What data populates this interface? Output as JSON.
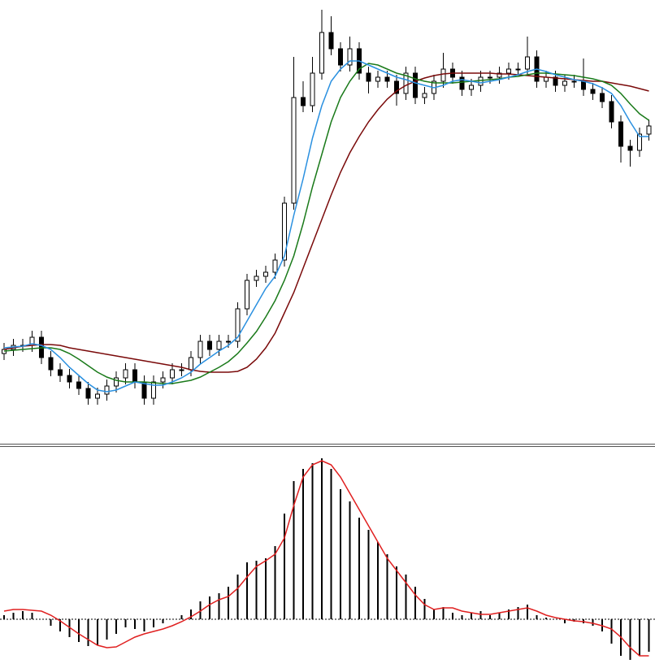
{
  "chart_data": [
    {
      "type": "candlestick",
      "open": [
        105,
        110,
        115,
        115,
        125,
        100,
        85,
        78,
        70,
        62,
        50,
        55,
        65,
        75,
        85,
        70,
        50,
        70,
        75,
        85,
        85,
        100,
        120,
        110,
        120,
        120,
        160,
        195,
        200,
        205,
        220,
        290,
        420,
        410,
        450,
        500,
        480,
        460,
        480,
        450,
        440,
        445,
        440,
        425,
        450,
        420,
        425,
        440,
        455,
        445,
        430,
        435,
        445,
        445,
        450,
        455,
        455,
        470,
        440,
        445,
        435,
        440,
        440,
        430,
        425,
        415,
        390,
        360,
        355,
        375
      ],
      "high": [
        118,
        123,
        123,
        133,
        133,
        108,
        93,
        86,
        78,
        70,
        63,
        73,
        83,
        93,
        93,
        78,
        78,
        83,
        93,
        93,
        108,
        128,
        128,
        128,
        128,
        168,
        203,
        208,
        213,
        228,
        298,
        470,
        440,
        470,
        528,
        520,
        488,
        495,
        488,
        458,
        453,
        453,
        448,
        458,
        458,
        433,
        448,
        475,
        463,
        453,
        443,
        453,
        453,
        458,
        463,
        463,
        495,
        478,
        453,
        453,
        448,
        448,
        468,
        438,
        433,
        423,
        398,
        368,
        383,
        393
      ],
      "low": [
        97,
        102,
        107,
        107,
        92,
        77,
        70,
        62,
        54,
        42,
        42,
        47,
        57,
        67,
        62,
        42,
        42,
        62,
        67,
        77,
        77,
        92,
        102,
        102,
        112,
        112,
        152,
        187,
        192,
        197,
        212,
        282,
        402,
        402,
        442,
        472,
        452,
        452,
        442,
        425,
        432,
        432,
        410,
        417,
        412,
        412,
        417,
        432,
        437,
        422,
        422,
        427,
        437,
        437,
        442,
        447,
        447,
        432,
        432,
        427,
        427,
        432,
        422,
        417,
        407,
        382,
        340,
        335,
        347,
        367
      ],
      "close": [
        110,
        115,
        115,
        125,
        100,
        85,
        78,
        70,
        62,
        50,
        55,
        65,
        75,
        85,
        70,
        50,
        70,
        75,
        85,
        85,
        100,
        120,
        110,
        120,
        120,
        160,
        195,
        200,
        205,
        220,
        290,
        420,
        410,
        450,
        500,
        480,
        460,
        480,
        450,
        440,
        445,
        440,
        425,
        450,
        420,
        425,
        440,
        455,
        445,
        430,
        435,
        445,
        445,
        450,
        455,
        455,
        470,
        440,
        445,
        435,
        440,
        440,
        430,
        425,
        415,
        390,
        360,
        355,
        375,
        385
      ],
      "ylim": [
        0,
        540
      ],
      "up_color": "#ffffff",
      "down_color": "#000000",
      "series": [
        {
          "color": "#7a0a0a",
          "values": [
            110,
            112,
            114,
            115,
            116,
            116,
            115,
            112,
            110,
            108,
            106,
            104,
            102,
            100,
            98,
            96,
            94,
            92,
            90,
            88,
            85,
            83,
            82,
            82,
            82,
            83,
            88,
            98,
            112,
            130,
            155,
            180,
            210,
            240,
            270,
            300,
            328,
            352,
            372,
            390,
            405,
            418,
            428,
            435,
            440,
            444,
            447,
            449,
            450,
            450,
            450,
            450,
            450,
            449,
            449,
            448,
            447,
            446,
            445,
            444,
            443,
            442,
            441,
            440,
            440,
            438,
            436,
            434,
            431,
            428
          ]
        },
        {
          "color": "#1a7a1a",
          "values": [
            108,
            109,
            110,
            111,
            112,
            112,
            110,
            105,
            98,
            90,
            82,
            76,
            72,
            70,
            70,
            70,
            69,
            68,
            68,
            70,
            72,
            76,
            82,
            88,
            95,
            105,
            118,
            132,
            150,
            170,
            195,
            225,
            265,
            310,
            350,
            390,
            420,
            440,
            455,
            462,
            460,
            455,
            450,
            447,
            443,
            440,
            438,
            438,
            438,
            439,
            440,
            441,
            442,
            443,
            445,
            446,
            448,
            450,
            450,
            449,
            448,
            447,
            445,
            443,
            440,
            435,
            425,
            412,
            400,
            392
          ]
        },
        {
          "color": "#2a90e0",
          "values": [
            112,
            113,
            114,
            117,
            115,
            110,
            100,
            88,
            78,
            68,
            60,
            58,
            60,
            65,
            70,
            68,
            66,
            66,
            70,
            75,
            82,
            92,
            100,
            108,
            115,
            125,
            145,
            165,
            185,
            200,
            225,
            275,
            320,
            370,
            410,
            440,
            455,
            465,
            465,
            460,
            455,
            450,
            445,
            442,
            438,
            435,
            432,
            435,
            440,
            442,
            440,
            438,
            440,
            442,
            445,
            448,
            452,
            455,
            452,
            448,
            445,
            442,
            440,
            437,
            432,
            425,
            410,
            390,
            372,
            372
          ]
        }
      ]
    },
    {
      "type": "histogram",
      "values": [
        5,
        8,
        10,
        8,
        0,
        -8,
        -15,
        -22,
        -28,
        -33,
        -32,
        -25,
        -18,
        -10,
        -12,
        -15,
        -10,
        -5,
        0,
        5,
        12,
        22,
        28,
        32,
        40,
        55,
        70,
        72,
        75,
        90,
        130,
        170,
        185,
        192,
        198,
        185,
        160,
        145,
        125,
        110,
        95,
        80,
        65,
        55,
        40,
        25,
        12,
        15,
        8,
        5,
        8,
        10,
        5,
        8,
        12,
        15,
        18,
        5,
        2,
        0,
        -5,
        -3,
        -5,
        -8,
        -15,
        -30,
        -45,
        -50,
        -45,
        -40
      ],
      "color": "#000000",
      "ylim": [
        -60,
        212
      ],
      "series": [
        {
          "color": "#e02020",
          "values": [
            10,
            12,
            12,
            11,
            10,
            5,
            -2,
            -10,
            -18,
            -25,
            -32,
            -35,
            -34,
            -28,
            -22,
            -18,
            -15,
            -12,
            -8,
            -3,
            3,
            10,
            18,
            24,
            28,
            38,
            52,
            65,
            72,
            80,
            100,
            140,
            175,
            190,
            195,
            190,
            175,
            155,
            135,
            115,
            95,
            75,
            60,
            45,
            30,
            18,
            12,
            14,
            14,
            10,
            8,
            6,
            6,
            8,
            10,
            12,
            14,
            10,
            5,
            2,
            0,
            -2,
            -3,
            -5,
            -8,
            -12,
            -22,
            -35,
            -45,
            -45
          ]
        }
      ]
    }
  ]
}
